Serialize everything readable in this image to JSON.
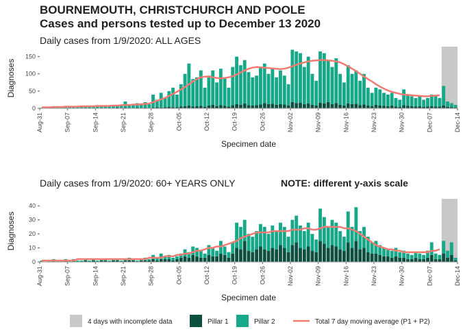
{
  "header": {
    "title": "BOURNEMOUTH, CHRISTCHURCH AND POOLE",
    "subtitle": "Cases and persons tested up to December 13 2020"
  },
  "chart_data": [
    {
      "type": "bar",
      "stacked": true,
      "title": "Daily cases from 1/9/2020: ALL AGES",
      "xlabel": "Specimen date",
      "ylabel": "Diagnoses",
      "x": [
        0,
        1,
        2,
        3,
        4,
        5,
        6,
        7,
        8,
        9,
        10,
        11,
        12,
        13,
        14,
        15,
        16,
        17,
        18,
        19,
        20,
        21,
        22,
        23,
        24,
        25,
        26,
        27,
        28,
        29,
        30,
        31,
        32,
        33,
        34,
        35,
        36,
        37,
        38,
        39,
        40,
        41,
        42,
        43,
        44,
        45,
        46,
        47,
        48,
        49,
        50,
        51,
        52,
        53,
        54,
        55,
        56,
        57,
        58,
        59,
        60,
        61,
        62,
        63,
        64,
        65,
        66,
        67,
        68,
        69,
        70,
        71,
        72,
        73,
        74,
        75,
        76,
        77,
        78,
        79,
        80,
        81,
        82,
        83,
        84,
        85,
        86,
        87,
        88,
        89,
        90,
        91,
        92,
        93,
        94,
        95,
        96,
        97,
        98,
        99,
        100,
        101,
        102,
        103,
        104
      ],
      "xlim": [
        0,
        105
      ],
      "xticks": [
        {
          "value": 0,
          "label": "Aug-31"
        },
        {
          "value": 7,
          "label": "Sep-07"
        },
        {
          "value": 14,
          "label": "Sep-14"
        },
        {
          "value": 21,
          "label": "Sep-21"
        },
        {
          "value": 28,
          "label": "Sep-28"
        },
        {
          "value": 35,
          "label": "Oct-05"
        },
        {
          "value": 42,
          "label": "Oct-12"
        },
        {
          "value": 49,
          "label": "Oct-19"
        },
        {
          "value": 56,
          "label": "Oct-26"
        },
        {
          "value": 63,
          "label": "Nov-02"
        },
        {
          "value": 70,
          "label": "Nov-09"
        },
        {
          "value": 77,
          "label": "Nov-16"
        },
        {
          "value": 84,
          "label": "Nov-23"
        },
        {
          "value": 91,
          "label": "Nov-30"
        },
        {
          "value": 98,
          "label": "Dec-07"
        },
        {
          "value": 105,
          "label": "Dec-14"
        }
      ],
      "ylim": [
        0,
        175
      ],
      "yticks": [
        0,
        50,
        100,
        150
      ],
      "shade": {
        "name": "4 days with incomplete data",
        "color": "#c8c8c8",
        "x": [
          101,
          105
        ]
      },
      "series": [
        {
          "name": "Pillar 1",
          "color": "#0f4f3f",
          "values": [
            0,
            0,
            1,
            0,
            1,
            0,
            1,
            1,
            0,
            1,
            1,
            0,
            1,
            0,
            1,
            1,
            0,
            1,
            1,
            2,
            1,
            2,
            1,
            1,
            2,
            1,
            2,
            1,
            2,
            3,
            2,
            3,
            4,
            3,
            3,
            5,
            6,
            8,
            5,
            6,
            7,
            4,
            8,
            10,
            6,
            9,
            7,
            5,
            9,
            12,
            10,
            14,
            9,
            8,
            9,
            11,
            15,
            12,
            13,
            10,
            12,
            11,
            8,
            18,
            15,
            16,
            12,
            14,
            10,
            8,
            16,
            14,
            18,
            12,
            15,
            10,
            8,
            14,
            12,
            13,
            9,
            11,
            8,
            6,
            10,
            8,
            7,
            6,
            8,
            5,
            4,
            9,
            7,
            6,
            5,
            6,
            4,
            5,
            6,
            5,
            5,
            8,
            4,
            3,
            2
          ]
        },
        {
          "name": "Pillar 2",
          "color": "#17a88a",
          "values": [
            2,
            3,
            2,
            4,
            3,
            3,
            4,
            4,
            6,
            4,
            5,
            7,
            5,
            5,
            5,
            6,
            8,
            6,
            7,
            7,
            7,
            18,
            9,
            11,
            13,
            9,
            16,
            11,
            38,
            22,
            43,
            27,
            46,
            57,
            37,
            65,
            94,
            122,
            80,
            84,
            103,
            56,
            87,
            100,
            69,
            106,
            83,
            55,
            111,
            138,
            115,
            126,
            96,
            82,
            86,
            109,
            115,
            88,
            102,
            80,
            98,
            84,
            62,
            152,
            150,
            144,
            108,
            136,
            90,
            72,
            149,
            146,
            122,
            108,
            130,
            90,
            67,
            111,
            88,
            97,
            71,
            89,
            52,
            39,
            50,
            47,
            38,
            34,
            37,
            25,
            21,
            46,
            33,
            29,
            25,
            29,
            21,
            25,
            34,
            30,
            25,
            57,
            16,
            12,
            8
          ]
        },
        {
          "name": "Total 7 day moving average (P1 + P2)",
          "type": "line",
          "color": "#f07b72",
          "values": [
            3,
            3,
            3,
            4,
            4,
            4,
            5,
            5,
            5,
            5,
            6,
            6,
            6,
            6,
            7,
            7,
            7,
            7,
            8,
            8,
            9,
            10,
            10,
            11,
            11,
            12,
            13,
            14,
            18,
            22,
            26,
            30,
            36,
            42,
            48,
            55,
            62,
            70,
            78,
            85,
            90,
            92,
            92,
            90,
            88,
            87,
            88,
            90,
            93,
            98,
            104,
            110,
            115,
            118,
            120,
            119,
            118,
            117,
            116,
            115,
            114,
            115,
            118,
            122,
            126,
            130,
            133,
            136,
            138,
            139,
            140,
            140,
            139,
            138,
            136,
            133,
            128,
            122,
            115,
            108,
            100,
            92,
            85,
            78,
            70,
            63,
            57,
            52,
            48,
            45,
            42,
            40,
            39,
            38,
            37,
            36,
            35,
            35,
            36,
            37,
            38,
            null,
            null,
            null,
            null
          ]
        }
      ]
    },
    {
      "type": "bar",
      "stacked": true,
      "title": "Daily cases from 1/9/2020: 60+ YEARS ONLY",
      "note": "NOTE: different y-axis scale",
      "xlabel": "Specimen date",
      "ylabel": "Diagnoses",
      "x": [
        0,
        1,
        2,
        3,
        4,
        5,
        6,
        7,
        8,
        9,
        10,
        11,
        12,
        13,
        14,
        15,
        16,
        17,
        18,
        19,
        20,
        21,
        22,
        23,
        24,
        25,
        26,
        27,
        28,
        29,
        30,
        31,
        32,
        33,
        34,
        35,
        36,
        37,
        38,
        39,
        40,
        41,
        42,
        43,
        44,
        45,
        46,
        47,
        48,
        49,
        50,
        51,
        52,
        53,
        54,
        55,
        56,
        57,
        58,
        59,
        60,
        61,
        62,
        63,
        64,
        65,
        66,
        67,
        68,
        69,
        70,
        71,
        72,
        73,
        74,
        75,
        76,
        77,
        78,
        79,
        80,
        81,
        82,
        83,
        84,
        85,
        86,
        87,
        88,
        89,
        90,
        91,
        92,
        93,
        94,
        95,
        96,
        97,
        98,
        99,
        100,
        101,
        102,
        103,
        104
      ],
      "xlim": [
        0,
        105
      ],
      "xticks": [
        {
          "value": 0,
          "label": "Aug-31"
        },
        {
          "value": 7,
          "label": "Sep-07"
        },
        {
          "value": 14,
          "label": "Sep-14"
        },
        {
          "value": 21,
          "label": "Sep-21"
        },
        {
          "value": 28,
          "label": "Sep-28"
        },
        {
          "value": 35,
          "label": "Oct-05"
        },
        {
          "value": 42,
          "label": "Oct-12"
        },
        {
          "value": 49,
          "label": "Oct-19"
        },
        {
          "value": 56,
          "label": "Oct-26"
        },
        {
          "value": 63,
          "label": "Nov-02"
        },
        {
          "value": 70,
          "label": "Nov-09"
        },
        {
          "value": 77,
          "label": "Nov-16"
        },
        {
          "value": 84,
          "label": "Nov-23"
        },
        {
          "value": 91,
          "label": "Nov-30"
        },
        {
          "value": 98,
          "label": "Dec-07"
        },
        {
          "value": 105,
          "label": "Dec-14"
        }
      ],
      "ylim": [
        0,
        44
      ],
      "yticks": [
        0,
        10,
        20,
        30,
        40
      ],
      "shade": {
        "color": "#c8c8c8",
        "x": [
          101,
          105
        ]
      },
      "series": [
        {
          "color": "#0f4f3f",
          "values": [
            0,
            0,
            0,
            1,
            0,
            0,
            1,
            0,
            1,
            0,
            0,
            1,
            0,
            1,
            0,
            1,
            1,
            0,
            1,
            1,
            0,
            1,
            1,
            1,
            0,
            1,
            1,
            1,
            2,
            1,
            2,
            2,
            2,
            1,
            2,
            3,
            4,
            3,
            5,
            4,
            3,
            3,
            5,
            4,
            4,
            6,
            5,
            3,
            6,
            10,
            9,
            15,
            8,
            7,
            9,
            11,
            9,
            8,
            10,
            9,
            12,
            10,
            7,
            12,
            14,
            10,
            9,
            11,
            8,
            7,
            15,
            13,
            10,
            12,
            11,
            9,
            8,
            14,
            10,
            15,
            9,
            10,
            7,
            6,
            6,
            5,
            4,
            4,
            3,
            4,
            3,
            3,
            2,
            2,
            3,
            2,
            2,
            3,
            5,
            2,
            2,
            6,
            3,
            5,
            1
          ]
        },
        {
          "color": "#17a88a",
          "values": [
            1,
            0,
            1,
            1,
            1,
            1,
            1,
            1,
            1,
            1,
            1,
            1,
            1,
            1,
            1,
            1,
            1,
            1,
            1,
            1,
            1,
            1,
            2,
            1,
            1,
            1,
            2,
            1,
            3,
            2,
            4,
            2,
            3,
            2,
            2,
            3,
            5,
            4,
            6,
            6,
            5,
            3,
            7,
            6,
            4,
            9,
            6,
            4,
            8,
            18,
            16,
            15,
            12,
            11,
            13,
            16,
            16,
            12,
            16,
            13,
            16,
            15,
            11,
            18,
            19,
            16,
            13,
            17,
            12,
            9,
            23,
            19,
            15,
            18,
            17,
            13,
            10,
            22,
            15,
            24,
            13,
            15,
            11,
            8,
            9,
            7,
            6,
            5,
            5,
            6,
            4,
            5,
            4,
            3,
            4,
            4,
            3,
            5,
            9,
            4,
            3,
            9,
            5,
            9,
            2
          ]
        },
        {
          "type": "line",
          "color": "#f07b72",
          "values": [
            1,
            1,
            1,
            1,
            1,
            1,
            1,
            1,
            1,
            2,
            2,
            2,
            2,
            2,
            2,
            2,
            2,
            2,
            2,
            2,
            2,
            2,
            2,
            2,
            2,
            2,
            2,
            3,
            3,
            3,
            3,
            4,
            4,
            4,
            5,
            5,
            6,
            6,
            7,
            8,
            8,
            9,
            10,
            10,
            11,
            11,
            12,
            13,
            14,
            15,
            17,
            18,
            19,
            20,
            21,
            21,
            21,
            21,
            22,
            22,
            22,
            22,
            22,
            23,
            23,
            23,
            24,
            24,
            23,
            23,
            24,
            25,
            25,
            25,
            25,
            25,
            24,
            24,
            23,
            22,
            20,
            18,
            16,
            14,
            12,
            11,
            10,
            9,
            9,
            8,
            8,
            7,
            7,
            7,
            7,
            7,
            7,
            7,
            8,
            8,
            9,
            null,
            null,
            null,
            null
          ]
        }
      ]
    }
  ]
}
